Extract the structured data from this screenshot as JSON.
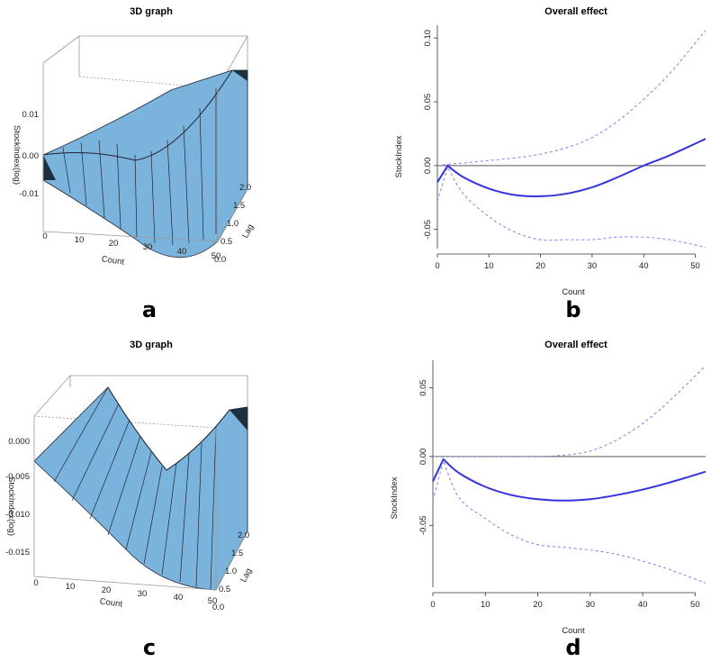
{
  "panels": [
    {
      "letter": "a",
      "title": "3D graph"
    },
    {
      "letter": "b",
      "title": "Overall effect"
    },
    {
      "letter": "c",
      "title": "3D graph"
    },
    {
      "letter": "d",
      "title": "Overall effect"
    }
  ],
  "colors": {
    "surface": "#7ab4dc",
    "surface_dark": "#1e3040",
    "curve": "#3333dd",
    "ci": "#8888ee"
  },
  "chart_data": [
    {
      "panel": "a",
      "type": "surface",
      "title": "3D graph",
      "xlabel": "Count",
      "ylabel": "Lag",
      "zlabel": "StockIndex(log)",
      "x_ticks": [
        "0",
        "10",
        "20",
        "30",
        "40",
        "50"
      ],
      "y_ticks": [
        "0.0",
        "0.5",
        "1.0",
        "1.5",
        "2.0"
      ],
      "z_ticks": [
        "0.01",
        "0.00",
        "-0.01"
      ],
      "xlim": [
        0,
        52
      ],
      "ylim": [
        0,
        2
      ],
      "zlim": [
        -0.015,
        0.015
      ]
    },
    {
      "panel": "b",
      "type": "line",
      "title": "Overall effect",
      "xlabel": "Count",
      "ylabel": "StockIndex",
      "xlim": [
        0,
        52
      ],
      "ylim": [
        -0.065,
        0.11
      ],
      "x_ticks": [
        "0",
        "10",
        "20",
        "30",
        "40",
        "50"
      ],
      "y_ticks": [
        "-0.05",
        "0.00",
        "0.05",
        "0.10"
      ],
      "x": [
        0,
        2,
        5,
        10,
        15,
        20,
        25,
        30,
        35,
        40,
        45,
        52
      ],
      "series": [
        {
          "values": [
            -0.013,
            0.0,
            -0.009,
            -0.018,
            -0.023,
            -0.024,
            -0.022,
            -0.017,
            -0.009,
            0.0,
            0.008,
            0.021
          ]
        },
        {
          "values": [
            0.0,
            0.001,
            0.002,
            0.004,
            0.006,
            0.009,
            0.014,
            0.022,
            0.035,
            0.052,
            0.072,
            0.106
          ]
        },
        {
          "values": [
            -0.028,
            -0.001,
            -0.022,
            -0.04,
            -0.052,
            -0.058,
            -0.058,
            -0.058,
            -0.056,
            -0.056,
            -0.058,
            -0.064
          ]
        }
      ]
    },
    {
      "panel": "c",
      "type": "surface",
      "title": "3D graph",
      "xlabel": "Count",
      "ylabel": "Lag",
      "zlabel": "StockIndex(log)",
      "x_ticks": [
        "0",
        "10",
        "20",
        "30",
        "40",
        "50"
      ],
      "y_ticks": [
        "0.0",
        "0.5",
        "1.0",
        "1.5",
        "2.0"
      ],
      "z_ticks": [
        "0.000",
        "-0.005",
        "-0.010",
        "-0.015"
      ],
      "xlim": [
        0,
        52
      ],
      "ylim": [
        0,
        2
      ],
      "zlim": [
        -0.018,
        0.002
      ]
    },
    {
      "panel": "d",
      "type": "line",
      "title": "Overall effect",
      "xlabel": "Count",
      "ylabel": "StockIndex",
      "xlim": [
        0,
        52
      ],
      "ylim": [
        -0.095,
        0.07
      ],
      "x_ticks": [
        "0",
        "10",
        "20",
        "30",
        "40",
        "50"
      ],
      "y_ticks": [
        "-0.05",
        "0.00",
        "0.05"
      ],
      "x": [
        0,
        2,
        5,
        10,
        15,
        20,
        25,
        30,
        35,
        40,
        45,
        52
      ],
      "series": [
        {
          "values": [
            -0.018,
            -0.002,
            -0.012,
            -0.022,
            -0.028,
            -0.031,
            -0.032,
            -0.031,
            -0.028,
            -0.024,
            -0.019,
            -0.011
          ]
        },
        {
          "values": [
            0.0,
            0.0,
            0.0,
            0.0,
            0.0,
            0.0,
            0.001,
            0.004,
            0.012,
            0.024,
            0.04,
            0.066
          ]
        },
        {
          "values": [
            -0.032,
            -0.003,
            -0.03,
            -0.045,
            -0.057,
            -0.064,
            -0.066,
            -0.068,
            -0.071,
            -0.076,
            -0.082,
            -0.092
          ]
        }
      ]
    }
  ]
}
